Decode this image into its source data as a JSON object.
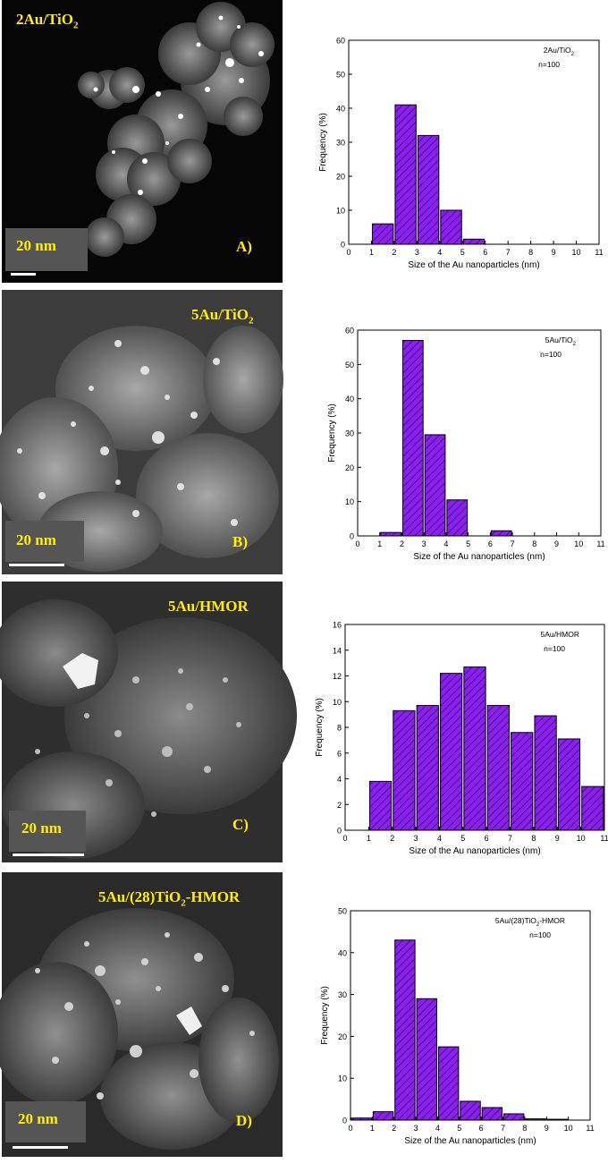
{
  "panels": [
    {
      "sample_label": "2Au/TiO",
      "sample_label_sub": "2",
      "sample_label_tail": "",
      "scale_text": "20  nm",
      "panel_letter": "A)"
    },
    {
      "sample_label": "5Au/TiO",
      "sample_label_sub": "2",
      "sample_label_tail": "",
      "scale_text": "20  nm",
      "panel_letter": "B)"
    },
    {
      "sample_label": "5Au/HMOR",
      "sample_label_sub": "",
      "sample_label_tail": "",
      "scale_text": "20  nm",
      "panel_letter": "C)"
    },
    {
      "sample_label": "5Au/(28)TiO",
      "sample_label_sub": "2",
      "sample_label_tail": "-HMOR",
      "scale_text": "20  nm",
      "panel_letter": "D)"
    }
  ],
  "colors": {
    "bar_fill": "#8a1ff0",
    "bar_hatch": "#1a0a40",
    "label_yellow": "#ffee00"
  },
  "chart_data": [
    {
      "type": "bar",
      "legend_label": "2Au/TiO",
      "legend_label_sub": "2",
      "legend_label_tail": "",
      "legend_n": "n=100",
      "xlabel": "Size of the Au nanoparticles (nm)",
      "ylabel": "Frequency (%)",
      "x": [
        2,
        3,
        4,
        5,
        6
      ],
      "values": [
        6,
        41,
        32,
        10,
        1.5
      ],
      "xlim": [
        0,
        11
      ],
      "ylim": [
        0,
        60
      ],
      "yticks": [
        0,
        10,
        20,
        30,
        40,
        50,
        60
      ],
      "xticks": [
        0,
        1,
        2,
        3,
        4,
        5,
        6,
        7,
        8,
        9,
        10,
        11
      ]
    },
    {
      "type": "bar",
      "legend_label": "5Au/TiO",
      "legend_label_sub": "2",
      "legend_label_tail": "",
      "legend_n": "n=100",
      "xlabel": "Size of the Au nanoparticles (nm)",
      "ylabel": "Frequency (%)",
      "x": [
        2,
        3,
        4,
        5,
        7
      ],
      "values": [
        1,
        57,
        29.5,
        10.5,
        1.5
      ],
      "xlim": [
        0,
        11
      ],
      "ylim": [
        0,
        60
      ],
      "yticks": [
        0,
        10,
        20,
        30,
        40,
        50,
        60
      ],
      "xticks": [
        0,
        1,
        2,
        3,
        4,
        5,
        6,
        7,
        8,
        9,
        10,
        11
      ]
    },
    {
      "type": "bar",
      "legend_label": "5Au/HMOR",
      "legend_label_sub": "",
      "legend_label_tail": "",
      "legend_n": "n=100",
      "xlabel": "Size of the Au nanoparticles (nm)",
      "ylabel": "Frequency (%)",
      "x": [
        2,
        3,
        4,
        5,
        6,
        7,
        8,
        9,
        10,
        11
      ],
      "values": [
        3.8,
        9.3,
        9.7,
        12.2,
        12.7,
        9.7,
        7.6,
        8.9,
        7.1,
        3.4
      ],
      "xlim": [
        0,
        11
      ],
      "ylim": [
        0,
        16
      ],
      "yticks": [
        0,
        2,
        4,
        6,
        8,
        10,
        12,
        14,
        16
      ],
      "xticks": [
        0,
        1,
        2,
        3,
        4,
        5,
        6,
        7,
        8,
        9,
        10,
        11
      ]
    },
    {
      "type": "bar",
      "legend_label": "5Au/(28)TiO",
      "legend_label_sub": "2",
      "legend_label_tail": "-HMOR",
      "legend_n": "n=100",
      "xlabel": "Size of the Au nanoparticles (nm)",
      "ylabel": "Frequency (%)",
      "x": [
        1,
        2,
        3,
        4,
        5,
        6,
        7,
        8,
        9,
        10
      ],
      "values": [
        0.5,
        2,
        43,
        29,
        17.5,
        4.5,
        3,
        1.5,
        0.3,
        0.2
      ],
      "xlim": [
        0,
        11
      ],
      "ylim": [
        0,
        50
      ],
      "yticks": [
        0,
        10,
        20,
        30,
        40,
        50
      ],
      "xticks": [
        0,
        1,
        2,
        3,
        4,
        5,
        6,
        7,
        8,
        9,
        10,
        11
      ]
    }
  ]
}
